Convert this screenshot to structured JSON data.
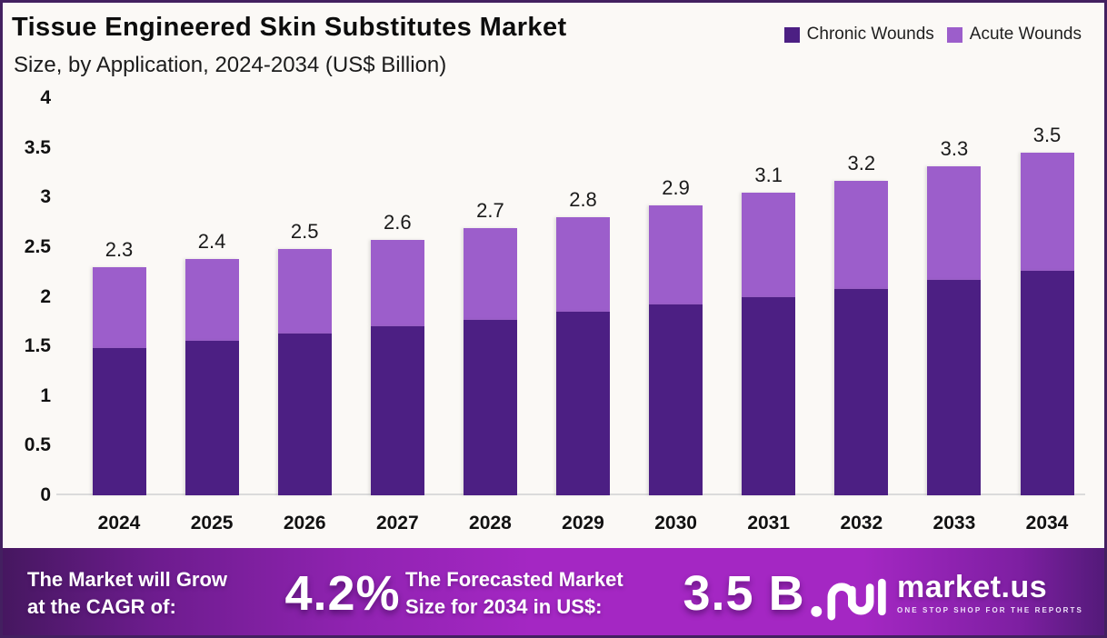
{
  "header": {
    "title": "Tissue Engineered Skin Substitutes Market",
    "subtitle": "Size, by Application, 2024-2034 (US$ Billion)"
  },
  "legend": [
    {
      "label": "Chronic Wounds",
      "color": "#4c1f83"
    },
    {
      "label": "Acute Wounds",
      "color": "#9c5ecb"
    }
  ],
  "chart_data": {
    "type": "bar",
    "stacked": true,
    "title": "Tissue Engineered Skin Substitutes Market Size, by Application, 2024-2034 (US$ Billion)",
    "categories": [
      "2024",
      "2025",
      "2026",
      "2027",
      "2028",
      "2029",
      "2030",
      "2031",
      "2032",
      "2033",
      "2034"
    ],
    "series": [
      {
        "name": "Chronic Wounds",
        "color": "#4c1f83",
        "values": [
          1.48,
          1.56,
          1.63,
          1.7,
          1.77,
          1.85,
          1.92,
          2.0,
          2.08,
          2.17,
          2.26
        ]
      },
      {
        "name": "Acute Wounds",
        "color": "#9c5ecb",
        "values": [
          0.82,
          0.82,
          0.85,
          0.87,
          0.92,
          0.95,
          1.0,
          1.05,
          1.09,
          1.14,
          1.19
        ]
      }
    ],
    "total_labels": [
      "2.3",
      "2.4",
      "2.5",
      "2.6",
      "2.7",
      "2.8",
      "2.9",
      "3.1",
      "3.2",
      "3.3",
      "3.5"
    ],
    "xlabel": "",
    "ylabel": "US$ Billion",
    "ylim": [
      0,
      4
    ],
    "yticks": [
      0,
      0.5,
      1,
      1.5,
      2,
      2.5,
      3,
      3.5,
      4
    ],
    "grid": false,
    "legend_position": "top-right"
  },
  "banner": {
    "left_label": "The Market will Grow\nat the CAGR of:",
    "cagr_value": "4.2%",
    "right_label": "The Forecasted Market\nSize for 2034 in US$:",
    "size_value": "3.5 B",
    "logo_text": "market.us",
    "logo_tagline": "ONE STOP SHOP FOR THE REPORTS"
  },
  "colors": {
    "chronic": "#4c1f83",
    "acute": "#9c5ecb",
    "frame_border": "#432060",
    "background": "#fbf9f6",
    "axis_line": "#dbdbdb",
    "banner_bright": "#a427c3",
    "banner_dark": "#45175f",
    "text": "#111111"
  }
}
